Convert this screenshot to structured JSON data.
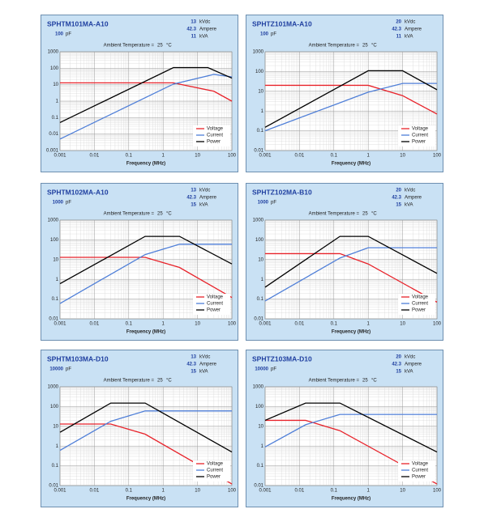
{
  "chart_data": [
    {
      "type": "line",
      "title": "SPHTM101MA-A10",
      "capacitance": {
        "value": 100,
        "unit": "pF"
      },
      "ratings": [
        {
          "value": 13,
          "unit": "kVdc"
        },
        {
          "value": 42.3,
          "unit": "Ampere"
        },
        {
          "value": 11,
          "unit": "kVA"
        }
      ],
      "ambient": {
        "label": "Ambient Temperature =",
        "value": 25,
        "unit": "°C"
      },
      "x_label": "Frequency (MHz)",
      "log_x": true,
      "log_y": true,
      "grid": true,
      "legend": "lower-right",
      "xlim": [
        0.001,
        100
      ],
      "xticks": [
        0.001,
        0.01,
        0.1,
        1,
        10,
        100
      ],
      "ylim": [
        0.001,
        1000
      ],
      "yticks": [
        0.001,
        0.01,
        0.1,
        1,
        10,
        100,
        1000
      ],
      "series": [
        {
          "name": "Voltage",
          "color": "#e8222a",
          "x": [
            0.001,
            2,
            30,
            100
          ],
          "values": [
            13,
            13,
            4,
            1
          ]
        },
        {
          "name": "Current",
          "color": "#4f7fd8",
          "x": [
            0.001,
            2,
            30,
            100
          ],
          "values": [
            0.005,
            11,
            42.3,
            30
          ]
        },
        {
          "name": "Power",
          "color": "#000000",
          "x": [
            0.001,
            2,
            20,
            100
          ],
          "values": [
            0.05,
            110,
            110,
            25
          ]
        }
      ]
    },
    {
      "type": "line",
      "title": "SPHTZ101MA-A10",
      "capacitance": {
        "value": 100,
        "unit": "pF"
      },
      "ratings": [
        {
          "value": 20,
          "unit": "kVdc"
        },
        {
          "value": 42.3,
          "unit": "Ampere"
        },
        {
          "value": 11,
          "unit": "kVA"
        }
      ],
      "ambient": {
        "label": "Ambient Temperature =",
        "value": 25,
        "unit": "°C"
      },
      "x_label": "Frequency (MHz)",
      "log_x": true,
      "log_y": true,
      "grid": true,
      "legend": "lower-right",
      "xlim": [
        0.001,
        100
      ],
      "xticks": [
        0.001,
        0.01,
        0.1,
        1,
        10,
        100
      ],
      "ylim": [
        0.01,
        1000
      ],
      "yticks": [
        0.01,
        0.1,
        1,
        10,
        100,
        1000
      ],
      "series": [
        {
          "name": "Voltage",
          "color": "#e8222a",
          "x": [
            0.001,
            1,
            10,
            100
          ],
          "values": [
            20,
            20,
            6,
            0.7
          ]
        },
        {
          "name": "Current",
          "color": "#4f7fd8",
          "x": [
            0.001,
            1,
            10,
            100
          ],
          "values": [
            0.1,
            9,
            25,
            25
          ]
        },
        {
          "name": "Power",
          "color": "#000000",
          "x": [
            0.001,
            1,
            10,
            100
          ],
          "values": [
            0.15,
            110,
            110,
            12
          ]
        }
      ]
    },
    {
      "type": "line",
      "title": "SPHTM102MA-A10",
      "capacitance": {
        "value": 1000,
        "unit": "pF"
      },
      "ratings": [
        {
          "value": 13,
          "unit": "kVdc"
        },
        {
          "value": 42.3,
          "unit": "Ampere"
        },
        {
          "value": 15,
          "unit": "kVA"
        }
      ],
      "ambient": {
        "label": "Ambient Temperature =",
        "value": 25,
        "unit": "°C"
      },
      "x_label": "Frequency (MHz)",
      "log_x": true,
      "log_y": true,
      "grid": true,
      "legend": "lower-right",
      "xlim": [
        0.001,
        100
      ],
      "xticks": [
        0.001,
        0.01,
        0.1,
        1,
        10,
        100
      ],
      "ylim": [
        0.01,
        1000
      ],
      "yticks": [
        0.01,
        0.1,
        1,
        10,
        100,
        1000
      ],
      "series": [
        {
          "name": "Voltage",
          "color": "#e8222a",
          "x": [
            0.001,
            0.3,
            3,
            100
          ],
          "values": [
            13,
            13,
            4,
            0.12
          ]
        },
        {
          "name": "Current",
          "color": "#4f7fd8",
          "x": [
            0.001,
            0.3,
            3,
            100
          ],
          "values": [
            0.06,
            18,
            60,
            60
          ]
        },
        {
          "name": "Power",
          "color": "#000000",
          "x": [
            0.001,
            0.3,
            3,
            100
          ],
          "values": [
            0.6,
            150,
            150,
            6
          ]
        }
      ]
    },
    {
      "type": "line",
      "title": "SPHTZ102MA-B10",
      "capacitance": {
        "value": 1000,
        "unit": "pF"
      },
      "ratings": [
        {
          "value": 20,
          "unit": "kVdc"
        },
        {
          "value": 42.3,
          "unit": "Ampere"
        },
        {
          "value": 15,
          "unit": "kVA"
        }
      ],
      "ambient": {
        "label": "Ambient Temperature =",
        "value": 25,
        "unit": "°C"
      },
      "x_label": "Frequency (MHz)",
      "log_x": true,
      "log_y": true,
      "grid": true,
      "legend": "lower-right",
      "xlim": [
        0.001,
        100
      ],
      "xticks": [
        0.001,
        0.01,
        0.1,
        1,
        10,
        100
      ],
      "ylim": [
        0.01,
        1000
      ],
      "yticks": [
        0.01,
        0.1,
        1,
        10,
        100,
        1000
      ],
      "series": [
        {
          "name": "Voltage",
          "color": "#e8222a",
          "x": [
            0.001,
            0.15,
            1,
            100
          ],
          "values": [
            20,
            20,
            6,
            0.07
          ]
        },
        {
          "name": "Current",
          "color": "#4f7fd8",
          "x": [
            0.001,
            0.15,
            1,
            100
          ],
          "values": [
            0.08,
            12,
            40,
            40
          ]
        },
        {
          "name": "Power",
          "color": "#000000",
          "x": [
            0.001,
            0.15,
            1,
            100
          ],
          "values": [
            0.4,
            150,
            150,
            2
          ]
        }
      ]
    },
    {
      "type": "line",
      "title": "SPHTM103MA-D10",
      "capacitance": {
        "value": 10000,
        "unit": "pF"
      },
      "ratings": [
        {
          "value": 13,
          "unit": "kVdc"
        },
        {
          "value": 42.3,
          "unit": "Ampere"
        },
        {
          "value": 15,
          "unit": "kVA"
        }
      ],
      "ambient": {
        "label": "Ambient Temperature =",
        "value": 25,
        "unit": "°C"
      },
      "x_label": "Frequency (MHz)",
      "log_x": true,
      "log_y": true,
      "grid": true,
      "legend": "lower-right",
      "xlim": [
        0.001,
        100
      ],
      "xticks": [
        0.001,
        0.01,
        0.1,
        1,
        10,
        100
      ],
      "ylim": [
        0.01,
        1000
      ],
      "yticks": [
        0.01,
        0.1,
        1,
        10,
        100,
        1000
      ],
      "series": [
        {
          "name": "Voltage",
          "color": "#e8222a",
          "x": [
            0.001,
            0.03,
            0.3,
            100
          ],
          "values": [
            13,
            13,
            4,
            0.012
          ]
        },
        {
          "name": "Current",
          "color": "#4f7fd8",
          "x": [
            0.001,
            0.03,
            0.3,
            100
          ],
          "values": [
            0.6,
            18,
            60,
            60
          ]
        },
        {
          "name": "Power",
          "color": "#000000",
          "x": [
            0.001,
            0.03,
            0.3,
            100
          ],
          "values": [
            5,
            150,
            150,
            0.5
          ]
        }
      ]
    },
    {
      "type": "line",
      "title": "SPHTZ103MA-D10",
      "capacitance": {
        "value": 10000,
        "unit": "pF"
      },
      "ratings": [
        {
          "value": 20,
          "unit": "kVdc"
        },
        {
          "value": 42.3,
          "unit": "Ampere"
        },
        {
          "value": 15,
          "unit": "kVA"
        }
      ],
      "ambient": {
        "label": "Ambient Temperature =",
        "value": 25,
        "unit": "°C"
      },
      "x_label": "Frequency (MHz)",
      "log_x": true,
      "log_y": true,
      "grid": true,
      "legend": "lower-right",
      "xlim": [
        0.001,
        100
      ],
      "xticks": [
        0.001,
        0.01,
        0.1,
        1,
        10,
        100
      ],
      "ylim": [
        0.01,
        1000
      ],
      "yticks": [
        0.01,
        0.1,
        1,
        10,
        100,
        1000
      ],
      "series": [
        {
          "name": "Voltage",
          "color": "#e8222a",
          "x": [
            0.001,
            0.015,
            0.15,
            100
          ],
          "values": [
            20,
            20,
            6,
            0.012
          ]
        },
        {
          "name": "Current",
          "color": "#4f7fd8",
          "x": [
            0.001,
            0.015,
            0.15,
            100
          ],
          "values": [
            0.9,
            12,
            40,
            40
          ]
        },
        {
          "name": "Power",
          "color": "#000000",
          "x": [
            0.001,
            0.015,
            0.15,
            100
          ],
          "values": [
            20,
            150,
            150,
            0.5
          ]
        }
      ]
    }
  ]
}
